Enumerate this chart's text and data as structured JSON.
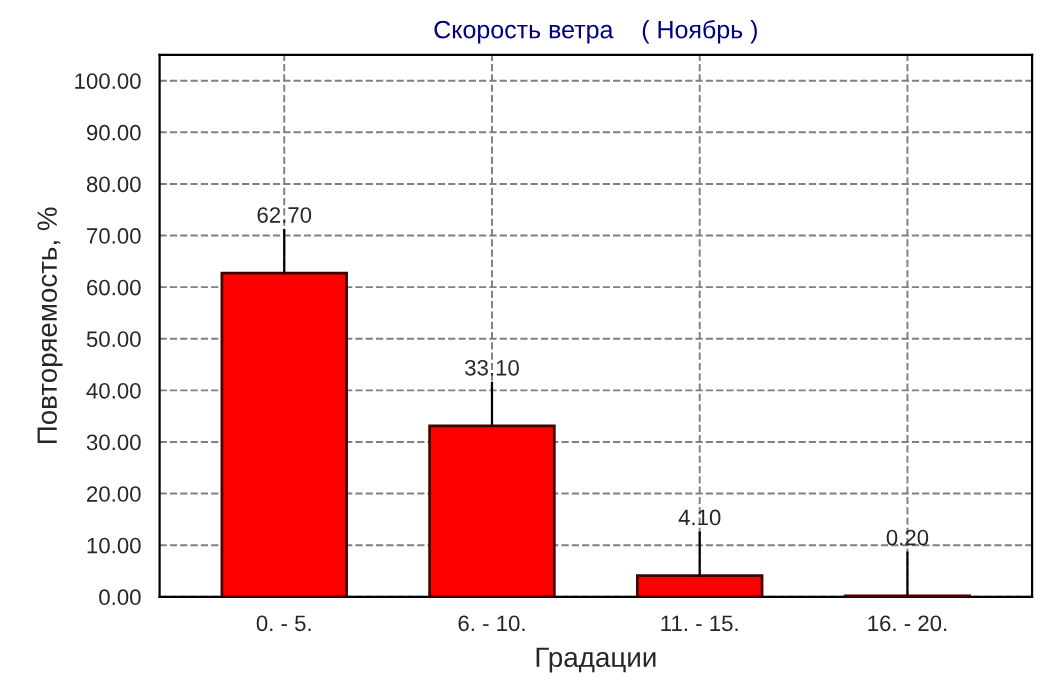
{
  "chart_data": {
    "type": "bar",
    "title": "Скорость ветра    ( Ноябрь )",
    "xlabel": "Градации",
    "ylabel": "Повторяемость, %",
    "categories": [
      "0. - 5.",
      "6. - 10.",
      "11. - 15.",
      "16. - 20."
    ],
    "values": [
      62.7,
      33.1,
      4.1,
      0.2
    ],
    "color": "#ff0000",
    "value_labels": [
      "62.70",
      "33.10",
      "4.10",
      "0.20"
    ],
    "ylim": [
      0,
      105
    ],
    "yticks": [
      {
        "value": 0,
        "label": "0.00"
      },
      {
        "value": 10,
        "label": "10.00"
      },
      {
        "value": 20,
        "label": "20.00"
      },
      {
        "value": 30,
        "label": "30.00"
      },
      {
        "value": 40,
        "label": "40.00"
      },
      {
        "value": 50,
        "label": "50.00"
      },
      {
        "value": 60,
        "label": "60.00"
      },
      {
        "value": 70,
        "label": "70.00"
      },
      {
        "value": 80,
        "label": "80.00"
      },
      {
        "value": 90,
        "label": "90.00"
      },
      {
        "value": 100,
        "label": "100.00"
      }
    ],
    "grid": true
  }
}
